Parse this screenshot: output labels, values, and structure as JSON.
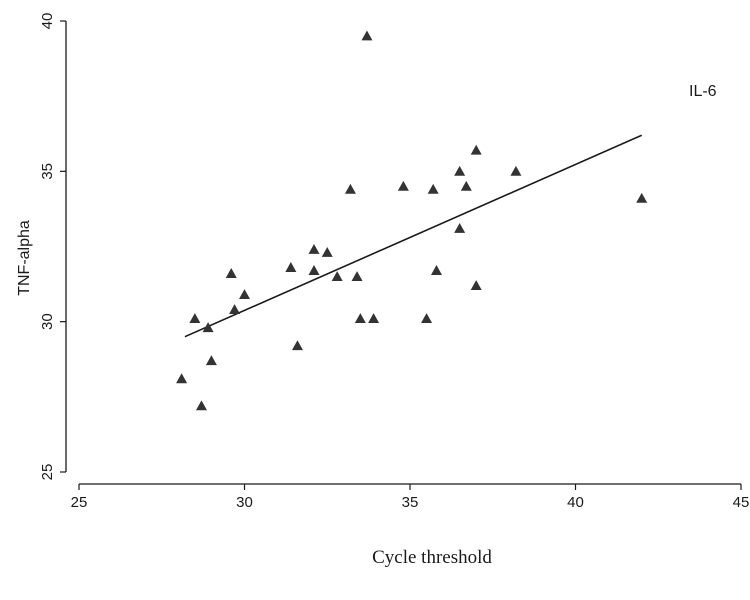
{
  "chart_data": {
    "type": "scatter",
    "xlabel": "Cycle threshold",
    "ylabel": "TNF-alpha",
    "annotation": "IL-6",
    "xlim": [
      25,
      45
    ],
    "ylim": [
      25,
      40
    ],
    "xticks": [
      25,
      30,
      35,
      40,
      45
    ],
    "yticks": [
      25,
      30,
      35,
      40
    ],
    "grid": false,
    "marker": "triangle",
    "marker_color": "#333333",
    "points": [
      {
        "x": 28.1,
        "y": 28.1
      },
      {
        "x": 28.5,
        "y": 30.1
      },
      {
        "x": 28.7,
        "y": 27.2
      },
      {
        "x": 28.9,
        "y": 29.8
      },
      {
        "x": 29.0,
        "y": 28.7
      },
      {
        "x": 29.6,
        "y": 31.6
      },
      {
        "x": 29.7,
        "y": 30.4
      },
      {
        "x": 30.0,
        "y": 30.9
      },
      {
        "x": 31.4,
        "y": 31.8
      },
      {
        "x": 31.6,
        "y": 29.2
      },
      {
        "x": 32.1,
        "y": 32.4
      },
      {
        "x": 32.1,
        "y": 31.7
      },
      {
        "x": 32.5,
        "y": 32.3
      },
      {
        "x": 32.8,
        "y": 31.5
      },
      {
        "x": 33.2,
        "y": 34.4
      },
      {
        "x": 33.4,
        "y": 31.5
      },
      {
        "x": 33.5,
        "y": 30.1
      },
      {
        "x": 33.7,
        "y": 39.5
      },
      {
        "x": 33.9,
        "y": 30.1
      },
      {
        "x": 34.8,
        "y": 34.5
      },
      {
        "x": 35.5,
        "y": 30.1
      },
      {
        "x": 35.7,
        "y": 34.4
      },
      {
        "x": 35.8,
        "y": 31.7
      },
      {
        "x": 36.5,
        "y": 35.0
      },
      {
        "x": 36.5,
        "y": 33.1
      },
      {
        "x": 36.7,
        "y": 34.5
      },
      {
        "x": 37.0,
        "y": 35.7
      },
      {
        "x": 37.0,
        "y": 31.2
      },
      {
        "x": 38.2,
        "y": 35.0
      },
      {
        "x": 42.0,
        "y": 34.1
      }
    ],
    "fit_line": {
      "x": [
        28.2,
        42.0
      ],
      "y": [
        29.5,
        36.2
      ],
      "color": "#1a1a1a"
    }
  }
}
